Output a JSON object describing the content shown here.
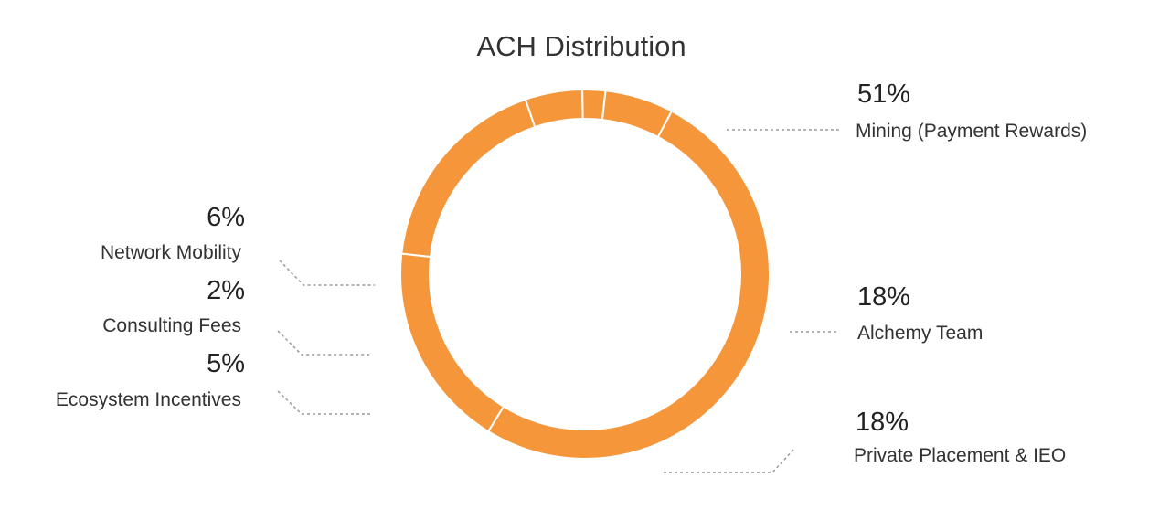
{
  "chart_data": {
    "type": "pie",
    "style": "donut",
    "title": "ACH Distribution",
    "color": "#f5963a",
    "separator_color": "#ffffff",
    "slices": [
      {
        "label": "Mining (Payment Rewards)",
        "value": 51,
        "value_label": "51%"
      },
      {
        "label": "Alchemy Team",
        "value": 18,
        "value_label": "18%"
      },
      {
        "label": "Private Placement & IEO",
        "value": 18,
        "value_label": "18%"
      },
      {
        "label": "Ecosystem Incentives",
        "value": 5,
        "value_label": "5%"
      },
      {
        "label": "Consulting Fees",
        "value": 2,
        "value_label": "2%"
      },
      {
        "label": "Network Mobility",
        "value": 6,
        "value_label": "6%"
      }
    ]
  }
}
